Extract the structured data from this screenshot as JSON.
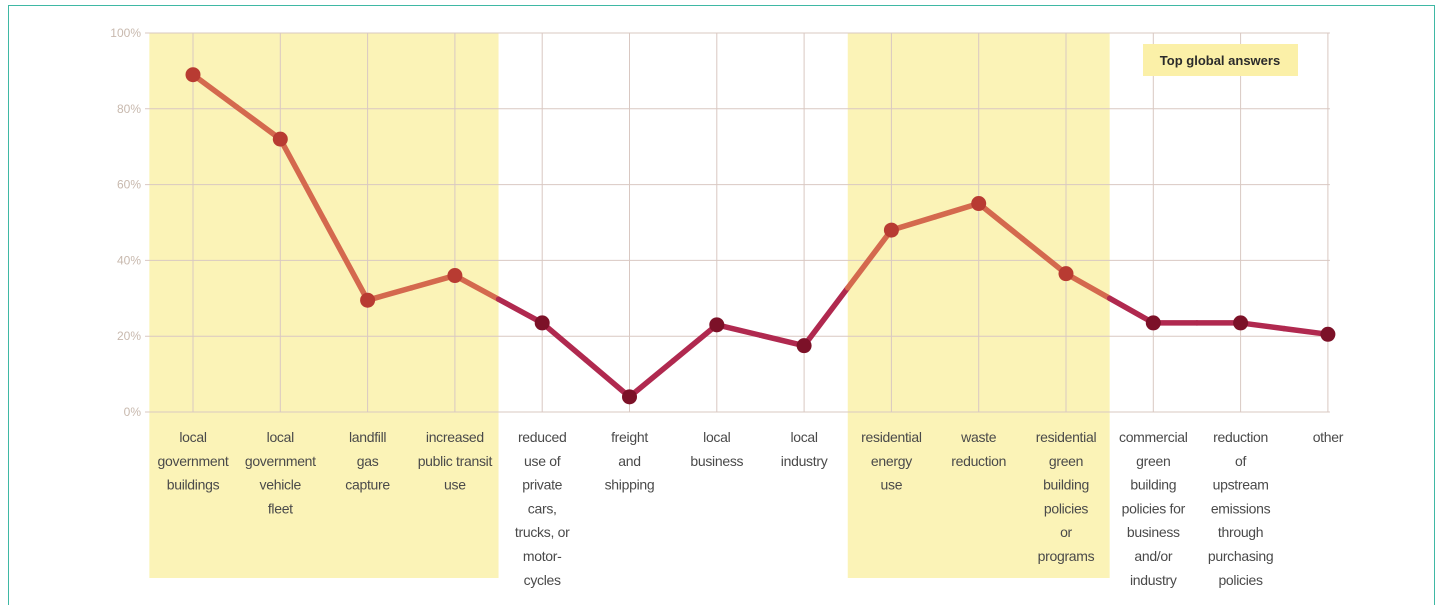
{
  "chart_data": {
    "type": "line",
    "legend": "Top global answers",
    "yticks": [
      "100%",
      "80%",
      "60%",
      "40%",
      "20%",
      "0%"
    ],
    "ylim": [
      0,
      100
    ],
    "categories": [
      [
        "local",
        "government",
        "buildings"
      ],
      [
        "local",
        "government",
        "vehicle",
        "fleet"
      ],
      [
        "landfill",
        "gas",
        "capture"
      ],
      [
        "increased",
        "public transit",
        "use"
      ],
      [
        "reduced",
        "use of",
        "private",
        "cars,",
        "trucks, or",
        "motor-",
        "cycles"
      ],
      [
        "freight",
        "and",
        "shipping"
      ],
      [
        "local",
        "business"
      ],
      [
        "local",
        "industry"
      ],
      [
        "residential",
        "energy",
        "use"
      ],
      [
        "waste",
        "reduction"
      ],
      [
        "residential",
        "green",
        "building",
        "policies",
        "or",
        "programs"
      ],
      [
        "commercial",
        "green",
        "building",
        "policies for",
        "business",
        "and/or",
        "industry"
      ],
      [
        "reduction",
        "of",
        "upstream",
        "emissions",
        "through",
        "purchasing",
        "policies"
      ],
      [
        "other"
      ]
    ],
    "values": [
      89,
      72,
      29.5,
      36,
      23.5,
      4,
      23,
      17.5,
      48,
      55,
      36.5,
      23.5,
      23.5,
      20.5
    ],
    "highlighted": [
      0,
      1,
      2,
      3,
      8,
      9,
      10
    ],
    "colors": {
      "top": "#d4694e",
      "other": "#b0294f",
      "top_dot": "#b83b32",
      "other_dot": "#7c1128",
      "highlight": "#fbf3b7",
      "grid": "#d9c8c2"
    }
  }
}
